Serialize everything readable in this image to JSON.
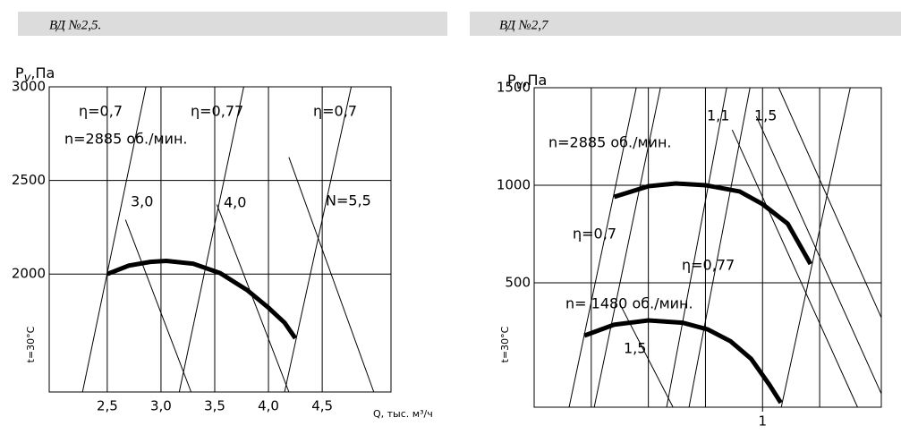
{
  "chart_data": [
    {
      "type": "line",
      "title": "ВД №2,5.",
      "y_label": "P",
      "y_label_sub": "v",
      "y_label_unit": ",Па",
      "x_label": "Q, тыс. м³/ч",
      "side_note": "t=30°C",
      "grid": true,
      "xlim": [
        1.96,
        5.14
      ],
      "ylim": [
        1370,
        3000
      ],
      "xticks": [
        {
          "value": 2.5,
          "label": "2,5"
        },
        {
          "value": 3.0,
          "label": "3,0"
        },
        {
          "value": 3.5,
          "label": "3,5"
        },
        {
          "value": 4.0,
          "label": "4,0"
        },
        {
          "value": 4.5,
          "label": "4,5"
        }
      ],
      "yticks": [
        2000,
        2500,
        3000
      ],
      "series": [
        {
          "color": "#000000",
          "x": [
            2.5,
            2.7,
            2.9,
            3.05,
            3.3,
            3.55,
            3.8,
            4.0,
            4.15,
            4.25
          ],
          "values": [
            2000,
            2045,
            2065,
            2070,
            2055,
            2005,
            1915,
            1820,
            1740,
            1657
          ]
        }
      ],
      "lines": [
        {
          "x": [
            2.27,
            2.86
          ],
          "y": [
            1370,
            3000
          ]
        },
        {
          "x": [
            2.67,
            3.28
          ],
          "y": [
            2290,
            1370
          ]
        },
        {
          "x": [
            3.17,
            3.77
          ],
          "y": [
            1370,
            3000
          ]
        },
        {
          "x": [
            3.52,
            4.19
          ],
          "y": [
            2371,
            1370
          ]
        },
        {
          "x": [
            4.15,
            4.77
          ],
          "y": [
            1370,
            3000
          ]
        },
        {
          "x": [
            4.19,
            4.98
          ],
          "y": [
            2624,
            1370
          ]
        }
      ],
      "annotations": [
        "η=0,7",
        "η=0,77",
        "η=0,7",
        "n=2885 об./мин.",
        "3,0",
        "4,0",
        "N=5,5"
      ]
    },
    {
      "type": "line",
      "title": "ВД №2,7",
      "y_label": "P",
      "y_label_sub": "v",
      "y_label_unit": ",Па",
      "side_note": "t=30°C",
      "grid": true,
      "xlim": [
        0,
        1.52
      ],
      "ylim": [
        -138,
        1500
      ],
      "xgrid": [
        0.25,
        0.5,
        0.75,
        1,
        1.25
      ],
      "xticks": [
        1
      ],
      "yticks": [
        500,
        1000,
        1500
      ],
      "series": [
        {
          "color": "#000000",
          "x": [
            0.35,
            0.5,
            0.62,
            0.75,
            0.9,
            1.0,
            1.11,
            1.21
          ],
          "values": [
            940,
            995,
            1009,
            1000,
            968,
            903,
            803,
            596
          ]
        },
        {
          "color": "#000000",
          "x": [
            0.22,
            0.35,
            0.5,
            0.65,
            0.76,
            0.86,
            0.95,
            1.03,
            1.08
          ],
          "values": [
            229,
            285,
            307,
            295,
            261,
            200,
            110,
            -23,
            -115
          ]
        }
      ],
      "lines": [
        {
          "x": [
            0.153,
            0.447
          ],
          "y": [
            -138,
            1500
          ]
        },
        {
          "x": [
            0.263,
            0.553
          ],
          "y": [
            -138,
            1500
          ]
        },
        {
          "x": [
            0.58,
            0.843
          ],
          "y": [
            -138,
            1500
          ]
        },
        {
          "x": [
            0.678,
            0.945
          ],
          "y": [
            -138,
            1500
          ]
        },
        {
          "x": [
            1.082,
            1.384
          ],
          "y": [
            -138,
            1500
          ]
        },
        {
          "x": [
            0.867,
            1.416
          ],
          "y": [
            1284,
            -138
          ]
        },
        {
          "x": [
            0.973,
            1.52
          ],
          "y": [
            1353,
            -69
          ]
        },
        {
          "x": [
            1.071,
            1.52
          ],
          "y": [
            1500,
            321
          ]
        },
        {
          "x": [
            0.376,
            0.608
          ],
          "y": [
            390,
            -138
          ]
        }
      ],
      "annotations": [
        "n=2885 об./мин.",
        "1,1",
        "1,5",
        "η=0,7",
        "η=0,77",
        "n= 1480 об./мин.",
        "1,5"
      ]
    }
  ]
}
